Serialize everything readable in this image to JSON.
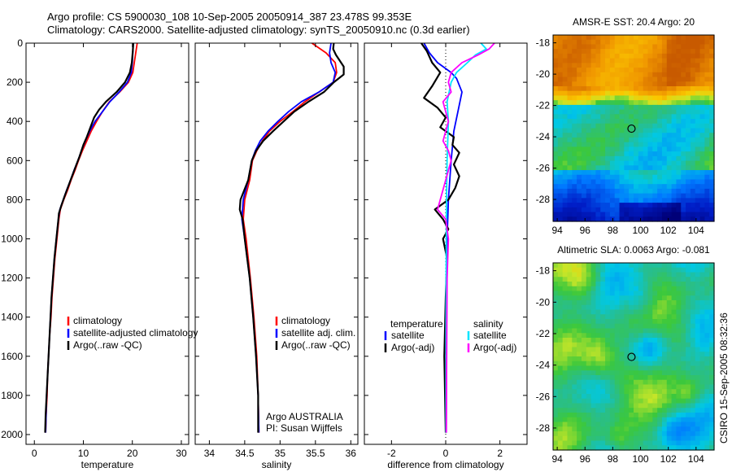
{
  "header": {
    "line1": "Argo profile: CS 5900030_108 10-Sep-2005 20050914_387 23.478S 99.353E",
    "line2": "Climatology: CARS2000. Satellite-adjusted climatology: synTS_20050910.nc (0.3d earlier)"
  },
  "credit": "CSIRO 15-Sep-2005 08:32:36",
  "colors": {
    "climatology": "#ff0000",
    "satellite": "#0000ff",
    "argo": "#000000",
    "satellite_salinity": "#00e5ff",
    "argo_salinity": "#ff00ff"
  },
  "chart_data": [
    {
      "type": "line",
      "id": "temperature",
      "xlabel": "temperature",
      "xlim": [
        -1.7,
        31.5
      ],
      "ylim": [
        2050,
        0
      ],
      "xticks": [
        0,
        10,
        20,
        30
      ],
      "yticks": [
        0,
        200,
        400,
        600,
        800,
        1000,
        1200,
        1400,
        1600,
        1800,
        2000
      ],
      "legend": [
        "climatology",
        "satellite-adjusted climatology",
        "Argo(..raw -QC)"
      ],
      "series": [
        {
          "name": "climatology",
          "color": "#ff0000",
          "points": [
            [
              21,
              0
            ],
            [
              20.7,
              50
            ],
            [
              20.4,
              100
            ],
            [
              20.1,
              150
            ],
            [
              19.2,
              200
            ],
            [
              17.4,
              250
            ],
            [
              15.3,
              300
            ],
            [
              13.9,
              350
            ],
            [
              12.7,
              400
            ],
            [
              11.6,
              450
            ],
            [
              10.7,
              500
            ],
            [
              9.8,
              550
            ],
            [
              9,
              600
            ],
            [
              8.3,
              650
            ],
            [
              7.5,
              700
            ],
            [
              6.8,
              750
            ],
            [
              6,
              800
            ],
            [
              5.3,
              850
            ],
            [
              5,
              900
            ],
            [
              4.6,
              1000
            ],
            [
              4.2,
              1100
            ],
            [
              3.9,
              1200
            ],
            [
              3.6,
              1300
            ],
            [
              3.4,
              1400
            ],
            [
              3.1,
              1500
            ],
            [
              2.9,
              1600
            ],
            [
              2.7,
              1700
            ],
            [
              2.6,
              1800
            ],
            [
              2.4,
              1900
            ],
            [
              2.3,
              1990
            ]
          ]
        },
        {
          "name": "satellite-adjusted climatology",
          "color": "#0000ff",
          "points": [
            [
              20.2,
              0
            ],
            [
              20.1,
              50
            ],
            [
              20,
              100
            ],
            [
              19.8,
              150
            ],
            [
              19,
              200
            ],
            [
              17.3,
              250
            ],
            [
              15.4,
              300
            ],
            [
              13.9,
              350
            ],
            [
              12.4,
              400
            ],
            [
              11.3,
              450
            ],
            [
              10.4,
              500
            ],
            [
              9.6,
              550
            ],
            [
              8.9,
              600
            ],
            [
              8.1,
              650
            ],
            [
              7.4,
              700
            ],
            [
              6.6,
              750
            ],
            [
              5.9,
              800
            ],
            [
              5.2,
              850
            ],
            [
              4.9,
              900
            ],
            [
              4.5,
              1000
            ],
            [
              4.1,
              1100
            ],
            [
              3.8,
              1200
            ],
            [
              3.5,
              1300
            ],
            [
              3.3,
              1400
            ],
            [
              3.1,
              1500
            ],
            [
              2.9,
              1600
            ],
            [
              2.7,
              1700
            ],
            [
              2.5,
              1800
            ],
            [
              2.4,
              1900
            ],
            [
              2.3,
              1990
            ]
          ]
        },
        {
          "name": "Argo(..raw -QC)",
          "color": "#000000",
          "points": [
            [
              20.2,
              0
            ],
            [
              20.1,
              40
            ],
            [
              19.9,
              100
            ],
            [
              19.5,
              150
            ],
            [
              18.5,
              200
            ],
            [
              16.8,
              250
            ],
            [
              14.6,
              300
            ],
            [
              13.2,
              340
            ],
            [
              12.2,
              380
            ],
            [
              11.6,
              420
            ],
            [
              10.7,
              480
            ],
            [
              10,
              520
            ],
            [
              9.2,
              580
            ],
            [
              8.6,
              620
            ],
            [
              8,
              660
            ],
            [
              7.4,
              700
            ],
            [
              6.8,
              740
            ],
            [
              6.2,
              780
            ],
            [
              5.5,
              830
            ],
            [
              5,
              870
            ],
            [
              4.9,
              900
            ],
            [
              4.5,
              1000
            ],
            [
              4.1,
              1100
            ],
            [
              3.8,
              1200
            ],
            [
              3.5,
              1300
            ],
            [
              3.3,
              1400
            ],
            [
              3.1,
              1500
            ],
            [
              2.9,
              1600
            ],
            [
              2.7,
              1700
            ],
            [
              2.5,
              1800
            ],
            [
              2.3,
              1900
            ],
            [
              2.2,
              1990
            ]
          ]
        }
      ]
    },
    {
      "type": "line",
      "id": "salinity",
      "xlabel": "salinity",
      "xlim": [
        33.8,
        36.1
      ],
      "ylim": [
        2050,
        0
      ],
      "xticks": [
        34,
        34.5,
        35,
        35.5,
        36
      ],
      "legend": [
        "climatology",
        "satellite adj. clim.",
        "Argo(..raw -QC)"
      ],
      "annotation": [
        "Argo AUSTRALIA",
        "PI: Susan Wijffels"
      ],
      "series": [
        {
          "name": "climatology",
          "color": "#ff0000",
          "points": [
            [
              35.45,
              0
            ],
            [
              35.65,
              50
            ],
            [
              35.78,
              100
            ],
            [
              35.8,
              150
            ],
            [
              35.75,
              200
            ],
            [
              35.55,
              250
            ],
            [
              35.35,
              300
            ],
            [
              35.18,
              350
            ],
            [
              35,
              400
            ],
            [
              34.85,
              450
            ],
            [
              34.75,
              500
            ],
            [
              34.67,
              550
            ],
            [
              34.61,
              600
            ],
            [
              34.57,
              700
            ],
            [
              34.5,
              800
            ],
            [
              34.48,
              900
            ],
            [
              34.52,
              1000
            ],
            [
              34.58,
              1200
            ],
            [
              34.63,
              1400
            ],
            [
              34.67,
              1600
            ],
            [
              34.69,
              1800
            ],
            [
              34.7,
              1990
            ]
          ]
        },
        {
          "name": "satellite adj. clim.",
          "color": "#0000ff",
          "points": [
            [
              35.72,
              0
            ],
            [
              35.7,
              50
            ],
            [
              35.72,
              100
            ],
            [
              35.78,
              150
            ],
            [
              35.75,
              200
            ],
            [
              35.55,
              250
            ],
            [
              35.3,
              300
            ],
            [
              35.12,
              350
            ],
            [
              34.97,
              400
            ],
            [
              34.83,
              450
            ],
            [
              34.72,
              500
            ],
            [
              34.65,
              550
            ],
            [
              34.6,
              600
            ],
            [
              34.55,
              700
            ],
            [
              34.48,
              800
            ],
            [
              34.46,
              900
            ],
            [
              34.5,
              1000
            ],
            [
              34.57,
              1200
            ],
            [
              34.62,
              1400
            ],
            [
              34.66,
              1600
            ],
            [
              34.69,
              1800
            ],
            [
              34.7,
              1990
            ]
          ]
        },
        {
          "name": "Argo(..raw -QC)",
          "color": "#000000",
          "points": [
            [
              35.76,
              0
            ],
            [
              35.75,
              30
            ],
            [
              35.79,
              60
            ],
            [
              35.9,
              120
            ],
            [
              35.9,
              160
            ],
            [
              35.76,
              200
            ],
            [
              35.62,
              250
            ],
            [
              35.4,
              300
            ],
            [
              35.2,
              350
            ],
            [
              35.05,
              400
            ],
            [
              34.9,
              450
            ],
            [
              34.76,
              500
            ],
            [
              34.66,
              550
            ],
            [
              34.6,
              600
            ],
            [
              34.55,
              700
            ],
            [
              34.44,
              800
            ],
            [
              34.43,
              850
            ],
            [
              34.47,
              900
            ],
            [
              34.5,
              1000
            ],
            [
              34.57,
              1200
            ],
            [
              34.62,
              1400
            ],
            [
              34.66,
              1600
            ],
            [
              34.69,
              1800
            ],
            [
              34.69,
              1990
            ]
          ]
        }
      ]
    },
    {
      "type": "line",
      "id": "difference",
      "xlabel": "difference from climatology",
      "xlim": [
        -3,
        3
      ],
      "ylim": [
        2050,
        0
      ],
      "xticks": [
        -2,
        0,
        2
      ],
      "legend_left": {
        "title": "temperature",
        "items": [
          "satellite",
          "Argo(-adj)"
        ]
      },
      "legend_right": {
        "title": "salinity",
        "items": [
          "satellite",
          "Argo(-adj)"
        ]
      },
      "series": [
        {
          "name": "satellite",
          "group": "temperature",
          "color": "#0000ff",
          "points": [
            [
              -0.8,
              0
            ],
            [
              -0.6,
              50
            ],
            [
              -0.3,
              100
            ],
            [
              0.2,
              150
            ],
            [
              0.4,
              180
            ],
            [
              0.6,
              250
            ],
            [
              0.45,
              350
            ],
            [
              0.3,
              450
            ],
            [
              0.2,
              600
            ],
            [
              0.1,
              800
            ],
            [
              0.05,
              1000
            ],
            [
              0.03,
              1500
            ],
            [
              0.02,
              1990
            ]
          ]
        },
        {
          "name": "Argo(-adj)",
          "group": "temperature",
          "color": "#000000",
          "points": [
            [
              -0.9,
              0
            ],
            [
              -0.7,
              40
            ],
            [
              -0.5,
              100
            ],
            [
              -0.2,
              150
            ],
            [
              -0.5,
              220
            ],
            [
              -0.8,
              280
            ],
            [
              -0.3,
              330
            ],
            [
              0,
              380
            ],
            [
              -0.2,
              430
            ],
            [
              0.3,
              480
            ],
            [
              0.25,
              520
            ],
            [
              0.5,
              560
            ],
            [
              0.3,
              620
            ],
            [
              0.5,
              680
            ],
            [
              0.35,
              740
            ],
            [
              0.1,
              800
            ],
            [
              -0.4,
              850
            ],
            [
              -0.1,
              900
            ],
            [
              0.1,
              950
            ],
            [
              -0.1,
              1000
            ],
            [
              0.05,
              1100
            ],
            [
              0,
              1300
            ],
            [
              -0.05,
              1600
            ],
            [
              0,
              1990
            ]
          ]
        },
        {
          "name": "satellite",
          "group": "salinity",
          "color": "#00e5ff",
          "points": [
            [
              1.3,
              0
            ],
            [
              1.5,
              30
            ],
            [
              1.1,
              60
            ],
            [
              0.8,
              100
            ],
            [
              0.4,
              150
            ],
            [
              0.2,
              200
            ],
            [
              0.05,
              300
            ],
            [
              0.1,
              400
            ],
            [
              0.05,
              600
            ],
            [
              0.03,
              800
            ],
            [
              0.02,
              1000
            ],
            [
              0.01,
              1500
            ],
            [
              0.01,
              1990
            ]
          ]
        },
        {
          "name": "Argo(-adj)",
          "group": "salinity",
          "color": "#ff00ff",
          "points": [
            [
              1.8,
              0
            ],
            [
              1.6,
              30
            ],
            [
              1.2,
              60
            ],
            [
              0.6,
              100
            ],
            [
              0.2,
              150
            ],
            [
              0.1,
              200
            ],
            [
              0.2,
              250
            ],
            [
              -0.1,
              300
            ],
            [
              0.1,
              400
            ],
            [
              -0.1,
              500
            ],
            [
              0.1,
              550
            ],
            [
              0.2,
              600
            ],
            [
              0.1,
              650
            ],
            [
              0,
              700
            ],
            [
              -0.2,
              800
            ],
            [
              -0.3,
              850
            ],
            [
              0,
              900
            ],
            [
              0.1,
              1000
            ],
            [
              0.05,
              1200
            ],
            [
              0.02,
              1990
            ]
          ]
        }
      ]
    },
    {
      "type": "heatmap",
      "id": "sst",
      "title": "AMSR-E SST: 20.4 Argo: 20",
      "xlim": [
        93.7,
        105.3
      ],
      "ylim": [
        -29.4,
        -17.5
      ],
      "xticks": [
        94,
        96,
        98,
        100,
        102,
        104
      ],
      "yticks": [
        -18,
        -20,
        -22,
        -24,
        -26,
        -28
      ],
      "marker": {
        "lon": 99.35,
        "lat": -23.48
      }
    },
    {
      "type": "heatmap",
      "id": "sla",
      "title": "Altimetric SLA: 0.0063 Argo: -0.081",
      "xlim": [
        93.7,
        105.3
      ],
      "ylim": [
        -29.4,
        -17.5
      ],
      "xticks": [
        94,
        96,
        98,
        100,
        102,
        104
      ],
      "yticks": [
        -18,
        -20,
        -22,
        -24,
        -26,
        -28
      ],
      "marker": {
        "lon": 99.35,
        "lat": -23.48
      }
    }
  ]
}
